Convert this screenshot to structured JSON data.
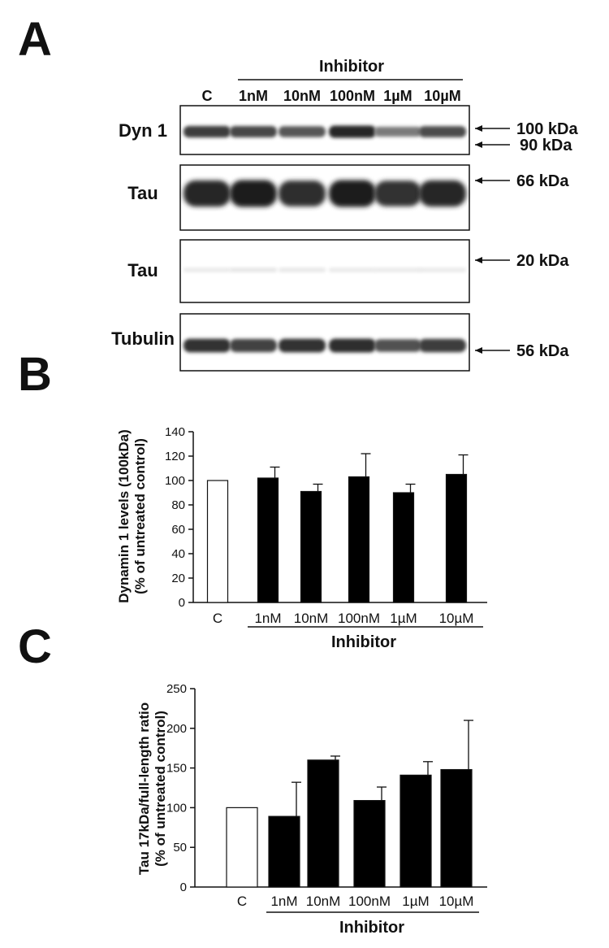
{
  "panels": {
    "a": "A",
    "b": "B",
    "c": "C"
  },
  "blot": {
    "group_label": "Inhibitor",
    "lanes": [
      "C",
      "1nM",
      "10nM",
      "100nM",
      "1µM",
      "10µM"
    ],
    "rows": [
      {
        "label": "Dyn 1",
        "markers": [
          "100 kDa",
          "90 kDa"
        ],
        "band_intensity": [
          0.85,
          0.8,
          0.72,
          0.95,
          0.55,
          0.78
        ]
      },
      {
        "label": "Tau",
        "markers": [
          "66 kDa"
        ],
        "band_intensity": [
          0.95,
          1.0,
          0.92,
          1.0,
          0.9,
          0.95
        ]
      },
      {
        "label": "Tau",
        "markers": [
          "20 kDa"
        ],
        "band_intensity": [
          0.02,
          0.04,
          0.03,
          0.02,
          0.02,
          0.02
        ]
      },
      {
        "label": "Tubulin",
        "markers": [
          "56 kDa"
        ],
        "band_intensity": [
          0.9,
          0.82,
          0.9,
          0.92,
          0.75,
          0.85
        ]
      }
    ]
  },
  "chart_data": [
    {
      "type": "bar",
      "categories": [
        "C",
        "1nM",
        "10nM",
        "100nM",
        "1µM",
        "10µM"
      ],
      "values": [
        100,
        102,
        91,
        103,
        90,
        105
      ],
      "errors": [
        0,
        9,
        6,
        19,
        7,
        16
      ],
      "ylabel": "Dynamin 1 levels (100kDa)",
      "ylabel2": "(% of untreated control)",
      "xlabel": "Inhibitor",
      "ylim": [
        0,
        140
      ],
      "yticks": [
        0,
        20,
        40,
        60,
        80,
        100,
        120,
        140
      ],
      "bar_colors": [
        "#ffffff",
        "#000000",
        "#000000",
        "#000000",
        "#000000",
        "#000000"
      ]
    },
    {
      "type": "bar",
      "categories": [
        "C",
        "1nM",
        "10nM",
        "100nM",
        "1µM",
        "10µM"
      ],
      "values": [
        100,
        89,
        160,
        109,
        141,
        148
      ],
      "errors": [
        0,
        43,
        5,
        17,
        17,
        62
      ],
      "ylabel": "Tau 17kDa/full-length ratio",
      "ylabel2": "(% of untreated control)",
      "xlabel": "Inhibitor",
      "ylim": [
        0,
        250
      ],
      "yticks": [
        0,
        50,
        100,
        150,
        200,
        250
      ],
      "bar_colors": [
        "#ffffff",
        "#000000",
        "#000000",
        "#000000",
        "#000000",
        "#000000"
      ]
    }
  ]
}
